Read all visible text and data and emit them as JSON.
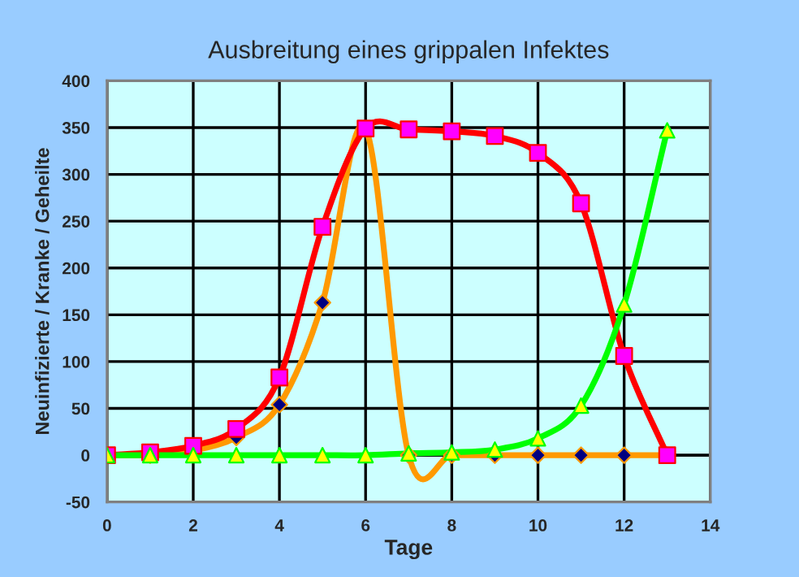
{
  "chart_data": {
    "type": "line",
    "title": "Ausbreitung eines grippalen Infektes",
    "xlabel": "Tage",
    "ylabel": "Neuinfizierte / Kranke / Geheilte",
    "x": [
      0,
      1,
      2,
      3,
      4,
      5,
      6,
      7,
      8,
      9,
      10,
      11,
      12,
      13
    ],
    "series": [
      {
        "color": "#ff9900",
        "marker": "diamond",
        "colors": [
          "#000080",
          "#000080",
          "#000080",
          "#000080",
          "#000080",
          "#000080",
          "#000080",
          "#000080",
          "#000080",
          "#000080",
          "#000080",
          "#000080",
          "#000080",
          "#000080"
        ],
        "values": [
          0,
          0,
          5,
          19,
          54,
          163,
          349,
          0,
          0,
          0,
          0,
          0,
          0,
          0
        ]
      },
      {
        "color": "#ff0000",
        "marker": "square",
        "colors": [
          "#ff00ff",
          "#ff00ff",
          "#ff00ff",
          "#ff00ff",
          "#ff00ff",
          "#ff00ff",
          "#ff00ff",
          "#ff00ff",
          "#ff00ff",
          "#ff00ff",
          "#ff00ff",
          "#ff00ff",
          "#ff00ff",
          "#ff00ff"
        ],
        "values": [
          0,
          3,
          10,
          28,
          83,
          244,
          349,
          348,
          346,
          341,
          323,
          269,
          106,
          0
        ]
      },
      {
        "color": "#00ff00",
        "marker": "triangle",
        "colors": [
          "#ffff00",
          "#ffff00",
          "#ffff00",
          "#ffff00",
          "#ffff00",
          "#ffff00",
          "#ffff00",
          "#ffff00",
          "#ffff00",
          "#ffff00",
          "#ffff00",
          "#ffff00",
          "#ffff00",
          "#ffff00"
        ],
        "values": [
          0,
          0,
          0,
          0,
          0,
          0,
          0,
          2,
          3,
          6,
          18,
          53,
          161,
          347
        ]
      }
    ],
    "xlim": [
      0,
      14
    ],
    "xticks": [
      0,
      2,
      4,
      6,
      8,
      10,
      12,
      14
    ],
    "ylim": [
      -50,
      400
    ],
    "yticks": [
      -50,
      0,
      50,
      100,
      150,
      200,
      250,
      300,
      350,
      400
    ],
    "grid": true,
    "legend": false,
    "line_style": "solid"
  }
}
